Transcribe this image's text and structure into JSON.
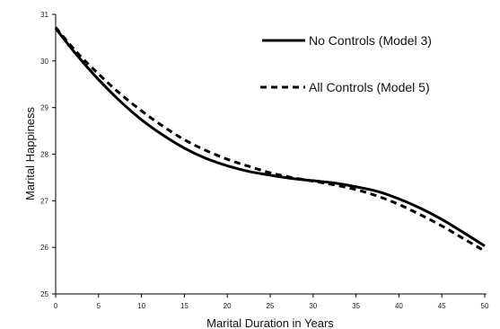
{
  "chart_data": {
    "type": "line",
    "title": "",
    "xlabel": "Marital Duration in Years",
    "ylabel": "Marital Happiness",
    "xlim": [
      0,
      50
    ],
    "ylim": [
      25,
      31
    ],
    "x_ticks": [
      0,
      5,
      10,
      15,
      20,
      25,
      30,
      35,
      40,
      45,
      50
    ],
    "y_ticks": [
      25,
      26,
      27,
      28,
      29,
      30,
      31
    ],
    "grid": false,
    "legend_position": "top-right",
    "series": [
      {
        "name": "No Controls (Model 3)",
        "style": "solid",
        "color": "#000000",
        "x": [
          0,
          2.5,
          5,
          7.5,
          10,
          12.5,
          15,
          17.5,
          20,
          22.5,
          25,
          27.5,
          30,
          32.5,
          35,
          37.5,
          40,
          42.5,
          45,
          47.5,
          50
        ],
        "y": [
          30.7,
          30.12,
          29.6,
          29.14,
          28.74,
          28.41,
          28.13,
          27.91,
          27.75,
          27.63,
          27.55,
          27.48,
          27.43,
          27.38,
          27.3,
          27.2,
          27.04,
          26.84,
          26.6,
          26.32,
          26.03
        ]
      },
      {
        "name": "All Controls (Model 5)",
        "style": "dashed",
        "color": "#000000",
        "x": [
          0,
          2.5,
          5,
          7.5,
          10,
          12.5,
          15,
          17.5,
          20,
          22.5,
          25,
          27.5,
          30,
          32.5,
          35,
          37.5,
          40,
          42.5,
          45,
          47.5,
          50
        ],
        "y": [
          30.72,
          30.18,
          29.72,
          29.3,
          28.93,
          28.6,
          28.31,
          28.08,
          27.89,
          27.74,
          27.6,
          27.5,
          27.42,
          27.34,
          27.24,
          27.1,
          26.92,
          26.7,
          26.46,
          26.19,
          25.92
        ]
      }
    ]
  }
}
